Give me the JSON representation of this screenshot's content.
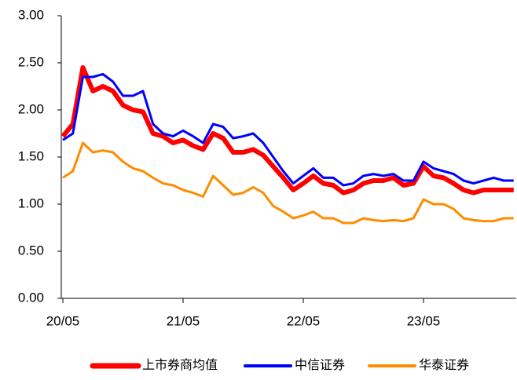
{
  "chart_data": {
    "type": "line",
    "categories": [
      "20/05",
      null,
      null,
      null,
      null,
      null,
      null,
      null,
      null,
      null,
      null,
      null,
      "21/05",
      null,
      null,
      null,
      null,
      null,
      null,
      null,
      null,
      null,
      null,
      null,
      "22/05",
      null,
      null,
      null,
      null,
      null,
      null,
      null,
      null,
      null,
      null,
      null,
      "23/05",
      null,
      null,
      null,
      null,
      null,
      null,
      null,
      null,
      null
    ],
    "series": [
      {
        "name": "上市券商均值",
        "color": "#ff0000",
        "values": [
          1.72,
          1.85,
          2.45,
          2.2,
          2.25,
          2.2,
          2.05,
          2.0,
          1.98,
          1.75,
          1.72,
          1.65,
          1.68,
          1.62,
          1.58,
          1.75,
          1.7,
          1.55,
          1.55,
          1.58,
          1.52,
          1.4,
          1.28,
          1.15,
          1.22,
          1.3,
          1.22,
          1.2,
          1.12,
          1.15,
          1.22,
          1.25,
          1.25,
          1.28,
          1.2,
          1.22,
          1.4,
          1.3,
          1.28,
          1.22,
          1.15,
          1.12,
          1.15,
          1.15,
          1.15,
          1.15
        ]
      },
      {
        "name": "中信证券",
        "color": "#0000ff",
        "values": [
          1.68,
          1.75,
          2.35,
          2.35,
          2.38,
          2.3,
          2.15,
          2.15,
          2.2,
          1.85,
          1.75,
          1.72,
          1.78,
          1.72,
          1.65,
          1.85,
          1.82,
          1.7,
          1.72,
          1.75,
          1.65,
          1.5,
          1.35,
          1.22,
          1.3,
          1.38,
          1.28,
          1.28,
          1.2,
          1.22,
          1.3,
          1.32,
          1.3,
          1.32,
          1.25,
          1.25,
          1.45,
          1.38,
          1.35,
          1.32,
          1.25,
          1.22,
          1.25,
          1.28,
          1.25,
          1.25
        ]
      },
      {
        "name": "华泰证券",
        "color": "#ff8c00",
        "values": [
          1.28,
          1.35,
          1.65,
          1.55,
          1.57,
          1.55,
          1.45,
          1.38,
          1.35,
          1.28,
          1.22,
          1.2,
          1.15,
          1.12,
          1.08,
          1.3,
          1.2,
          1.1,
          1.12,
          1.18,
          1.12,
          0.98,
          0.92,
          0.85,
          0.88,
          0.92,
          0.85,
          0.85,
          0.8,
          0.8,
          0.85,
          0.83,
          0.82,
          0.83,
          0.82,
          0.85,
          1.05,
          1.0,
          1.0,
          0.95,
          0.85,
          0.83,
          0.82,
          0.82,
          0.85,
          0.85
        ]
      }
    ],
    "ylim": [
      0,
      3
    ],
    "yticks": [
      {
        "value": 0,
        "label": "0.00"
      },
      {
        "value": 0.5,
        "label": "0.50"
      },
      {
        "value": 1,
        "label": "1.00"
      },
      {
        "value": 1.5,
        "label": "1.50"
      },
      {
        "value": 2,
        "label": "2.00"
      },
      {
        "value": 2.5,
        "label": "2.50"
      },
      {
        "value": 3,
        "label": "3.00"
      }
    ]
  }
}
